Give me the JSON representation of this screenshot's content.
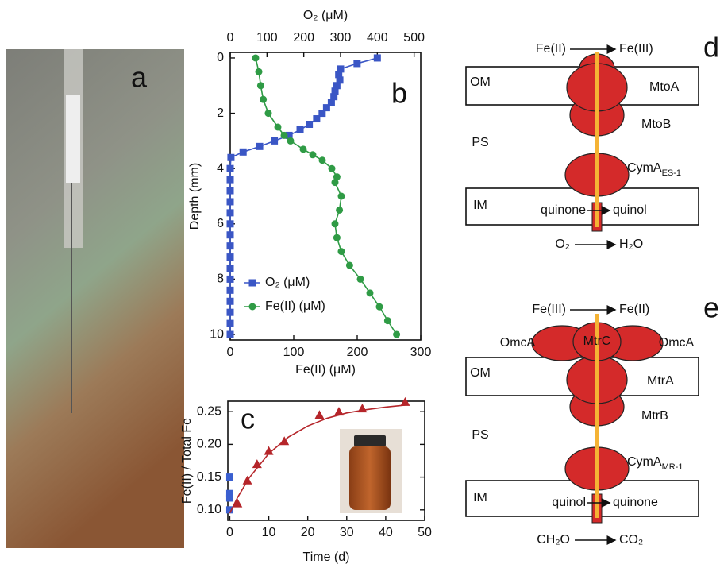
{
  "photo_panel": {
    "label": "a"
  },
  "chart_data": [
    {
      "type": "scatter",
      "panel_label": "b",
      "x_label": "Fe(II) (μM)",
      "x2_label": "O₂ (μM)",
      "y_label": "Depth (mm)",
      "xlim": [
        0,
        300
      ],
      "xticks": [
        0,
        100,
        200,
        300
      ],
      "x2lim": [
        0,
        518
      ],
      "x2ticks": [
        0,
        100,
        200,
        300,
        400,
        500
      ],
      "ylim": [
        10.2,
        -0.2
      ],
      "yticks": [
        0,
        2,
        4,
        6,
        8,
        10
      ],
      "legend": "lower left",
      "series": [
        {
          "name": "O₂ (μM)",
          "color": "#3a56c5",
          "marker": "square",
          "axis": "x2",
          "line": true,
          "x": [
            400,
            345,
            300,
            295,
            298,
            290,
            285,
            282,
            275,
            262,
            250,
            235,
            215,
            190,
            160,
            120,
            80,
            35,
            2,
            0,
            0,
            0,
            0,
            0,
            0,
            0,
            0,
            0,
            0,
            0,
            0,
            0,
            0,
            0,
            0
          ],
          "y": [
            0,
            0.2,
            0.4,
            0.6,
            0.8,
            1.0,
            1.2,
            1.4,
            1.6,
            1.8,
            2.0,
            2.2,
            2.4,
            2.6,
            2.8,
            3.0,
            3.2,
            3.4,
            3.6,
            4.0,
            4.4,
            4.8,
            5.2,
            5.6,
            6.0,
            6.4,
            6.8,
            7.2,
            7.6,
            8.0,
            8.4,
            8.8,
            9.2,
            9.6,
            10.0
          ]
        },
        {
          "name": "Fe(II) (μM)",
          "color": "#2f9b45",
          "marker": "circle",
          "line": true,
          "x": [
            40,
            45,
            48,
            52,
            60,
            75,
            85,
            95,
            115,
            130,
            145,
            160,
            168,
            165,
            175,
            172,
            165,
            168,
            175,
            188,
            205,
            220,
            235,
            248,
            262
          ],
          "y": [
            0,
            0.5,
            1,
            1.5,
            2,
            2.5,
            2.8,
            3,
            3.3,
            3.5,
            3.7,
            4,
            4.3,
            4.5,
            5,
            5.5,
            6,
            6.5,
            7,
            7.5,
            8,
            8.5,
            9,
            9.5,
            10
          ]
        }
      ]
    },
    {
      "type": "scatter",
      "panel_label": "c",
      "x_label": "Time (d)",
      "y_label": "Fe(II) / Total Fe",
      "xlim": [
        -0.5,
        50
      ],
      "xticks": [
        0,
        10,
        20,
        30,
        40,
        50
      ],
      "ylim": [
        0.084,
        0.266
      ],
      "yticks": [
        {
          "value": 0.1,
          "label": "0.10"
        },
        {
          "value": 0.15,
          "label": "0.15"
        },
        {
          "value": 0.2,
          "label": "0.20"
        },
        {
          "value": 0.25,
          "label": "0.25"
        }
      ],
      "series": [
        {
          "color": "#b5252a",
          "marker": "triangle",
          "x": [
            2,
            4.5,
            7,
            10,
            14,
            23,
            28,
            34,
            45
          ],
          "y": [
            0.11,
            0.145,
            0.17,
            0.19,
            0.205,
            0.245,
            0.25,
            0.255,
            0.265
          ]
        },
        {
          "color": "#3a5fd0",
          "marker": "square",
          "x": [
            0,
            0,
            0,
            0
          ],
          "y": [
            0.15,
            0.125,
            0.118,
            0.1
          ]
        },
        {
          "color": "#b5252a",
          "marker": "none",
          "line": true,
          "x": [
            0,
            2,
            5,
            10,
            15,
            20,
            25,
            30,
            35,
            40,
            45
          ],
          "y": [
            0.095,
            0.119,
            0.149,
            0.186,
            0.211,
            0.228,
            0.24,
            0.248,
            0.253,
            0.257,
            0.26
          ]
        }
      ]
    }
  ],
  "diagrams": [
    {
      "label": "d",
      "outer": {
        "from": "Fe(II)",
        "to": "Fe(III)"
      },
      "layers": [
        "OM",
        "PS",
        "IM"
      ],
      "proteins": [
        "MtoA",
        "MtoB"
      ],
      "cyma": {
        "name": "CymA",
        "sub": "ES-1"
      },
      "quinone": {
        "from": "quinone",
        "to": "quinol"
      },
      "inner": {
        "from": "O₂",
        "to": "H₂O"
      }
    },
    {
      "label": "e",
      "outer": {
        "from": "Fe(III)",
        "to": "Fe(II)"
      },
      "layers": [
        "OM",
        "PS",
        "IM"
      ],
      "proteins": [
        "OmcA",
        "MtrC",
        "OmcA",
        "MtrA",
        "MtrB"
      ],
      "cyma": {
        "name": "CymA",
        "sub": "MR-1"
      },
      "quinone": {
        "from": "quinol",
        "to": "quinone"
      },
      "inner": {
        "from": "CH₂O",
        "to": "CO₂"
      }
    }
  ]
}
